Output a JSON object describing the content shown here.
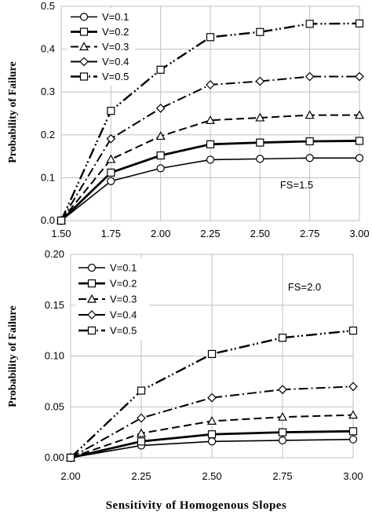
{
  "chart_data": [
    {
      "type": "line",
      "annotation": "FS=1.5",
      "ylabel": "Probability of Failure",
      "xlim": [
        1.5,
        3.0
      ],
      "ylim": [
        0,
        0.5
      ],
      "x": [
        1.5,
        1.75,
        2.0,
        2.25,
        2.5,
        2.75,
        3.0
      ],
      "xticks": [
        "1.50",
        "1.75",
        "2.00",
        "2.25",
        "2.50",
        "2.75",
        "3.00"
      ],
      "yticks": [
        "0.0",
        "0.1",
        "0.2",
        "0.3",
        "0.4",
        "0.5"
      ],
      "ytick_values": [
        0,
        0.1,
        0.2,
        0.3,
        0.4,
        0.5
      ],
      "grid": true,
      "legend_position": "top-left",
      "series": [
        {
          "name": "V=0.1",
          "marker": "circle",
          "dash": "solid",
          "width": 1.6,
          "values": [
            0.0,
            0.092,
            0.122,
            0.142,
            0.144,
            0.146,
            0.146
          ]
        },
        {
          "name": "V=0.2",
          "marker": "square",
          "dash": "solid",
          "width": 2.8,
          "values": [
            0.0,
            0.112,
            0.152,
            0.178,
            0.182,
            0.185,
            0.186
          ]
        },
        {
          "name": "V=0.3",
          "marker": "triangle",
          "dash": "dash",
          "width": 2.0,
          "values": [
            0.0,
            0.143,
            0.197,
            0.234,
            0.24,
            0.246,
            0.246
          ]
        },
        {
          "name": "V=0.4",
          "marker": "diamond",
          "dash": "dashdot",
          "width": 2.0,
          "values": [
            0.0,
            0.191,
            0.262,
            0.317,
            0.325,
            0.336,
            0.336
          ]
        },
        {
          "name": "V=0.5",
          "marker": "square",
          "dash": "dashdotdot",
          "width": 2.4,
          "values": [
            0.0,
            0.256,
            0.352,
            0.428,
            0.44,
            0.459,
            0.46
          ]
        }
      ]
    },
    {
      "type": "line",
      "annotation": "FS=2.0",
      "ylabel": "Probability of Failure",
      "xlabel": "Sensitivity of Homogenous Slopes",
      "xlim": [
        2.0,
        3.0
      ],
      "ylim": [
        0,
        0.2
      ],
      "x": [
        2.0,
        2.25,
        2.5,
        2.75,
        3.0
      ],
      "xticks": [
        "2.00",
        "2.25",
        "2.50",
        "2.75",
        "3.00"
      ],
      "yticks": [
        "0.00",
        "0.05",
        "0.10",
        "0.15",
        "0.20"
      ],
      "ytick_values": [
        0,
        0.05,
        0.1,
        0.15,
        0.2
      ],
      "grid": true,
      "legend_position": "top-left",
      "series": [
        {
          "name": "V=0.1",
          "marker": "circle",
          "dash": "solid",
          "width": 1.6,
          "values": [
            0.0,
            0.012,
            0.016,
            0.017,
            0.018
          ]
        },
        {
          "name": "V=0.2",
          "marker": "square",
          "dash": "solid",
          "width": 2.8,
          "values": [
            0.0,
            0.016,
            0.023,
            0.025,
            0.026
          ]
        },
        {
          "name": "V=0.3",
          "marker": "triangle",
          "dash": "dash",
          "width": 2.0,
          "values": [
            0.0,
            0.024,
            0.036,
            0.04,
            0.042
          ]
        },
        {
          "name": "V=0.4",
          "marker": "diamond",
          "dash": "dashdot",
          "width": 2.0,
          "values": [
            0.0,
            0.039,
            0.059,
            0.067,
            0.07
          ]
        },
        {
          "name": "V=0.5",
          "marker": "square",
          "dash": "dashdotdot",
          "width": 2.4,
          "values": [
            0.0,
            0.066,
            0.102,
            0.118,
            0.125
          ]
        }
      ]
    }
  ]
}
